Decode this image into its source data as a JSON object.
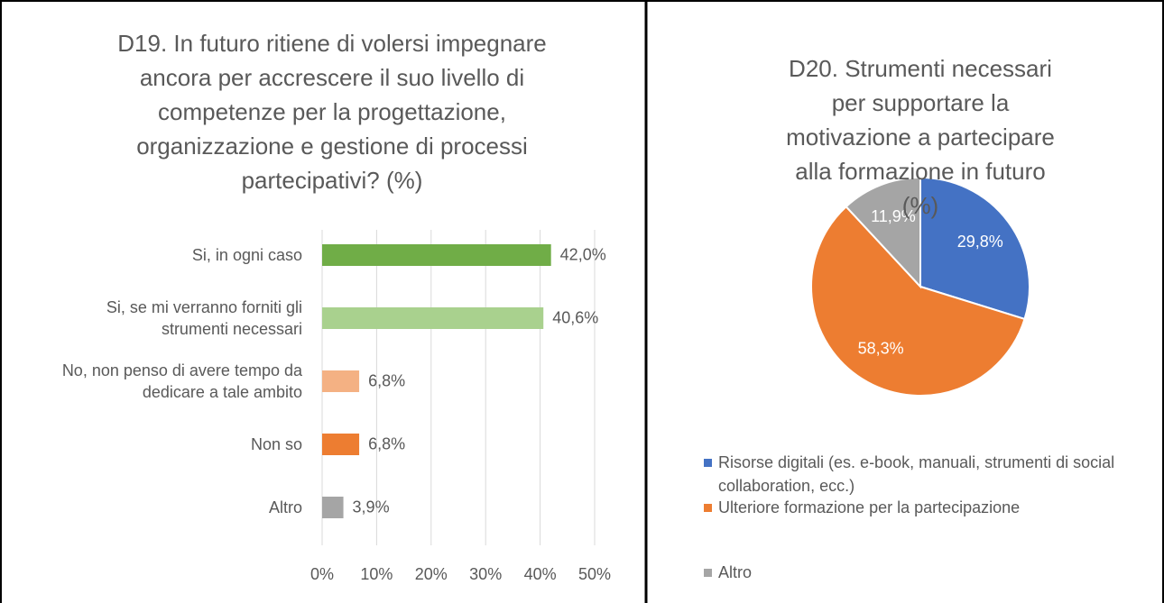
{
  "chart_data": [
    {
      "type": "bar",
      "orientation": "horizontal",
      "title": "D19. In futuro ritiene di volersi impegnare ancora per accrescere il suo livello di competenze per la progettazione, organizzazione e gestione di processi partecipativi? (%)",
      "categories": [
        "Si, in ogni caso",
        "Si, se mi verranno forniti gli strumenti necessari",
        "No, non penso di avere tempo da dedicare a tale ambito",
        "Non so",
        "Altro"
      ],
      "values": [
        42.0,
        40.6,
        6.8,
        6.8,
        3.9
      ],
      "value_labels": [
        "42,0%",
        "40,6%",
        "6,8%",
        "6,8%",
        "3,9%"
      ],
      "colors": [
        "#70ad47",
        "#a9d18e",
        "#f4b183",
        "#ed7d31",
        "#a5a5a5"
      ],
      "xlim": [
        0,
        50
      ],
      "xticks": [
        {
          "value": 0,
          "label": "0%"
        },
        {
          "value": 10,
          "label": "10%"
        },
        {
          "value": 20,
          "label": "20%"
        },
        {
          "value": 30,
          "label": "30%"
        },
        {
          "value": 40,
          "label": "40%"
        },
        {
          "value": 50,
          "label": "50%"
        }
      ],
      "grid": true
    },
    {
      "type": "pie",
      "title": "D20. Strumenti necessari per supportare la motivazione a partecipare alla formazione in futuro (%)",
      "categories": [
        "Risorse digitali (es. e-book, manuali, strumenti di social collaboration, ecc.)",
        "Ulteriore formazione per la partecipazione",
        "Altro"
      ],
      "values": [
        29.8,
        58.3,
        11.9
      ],
      "value_labels": [
        "29,8%",
        "58,3%",
        "11,9%"
      ],
      "colors": [
        "#4472c4",
        "#ed7d31",
        "#a5a5a5"
      ],
      "legend": "bottom"
    }
  ]
}
